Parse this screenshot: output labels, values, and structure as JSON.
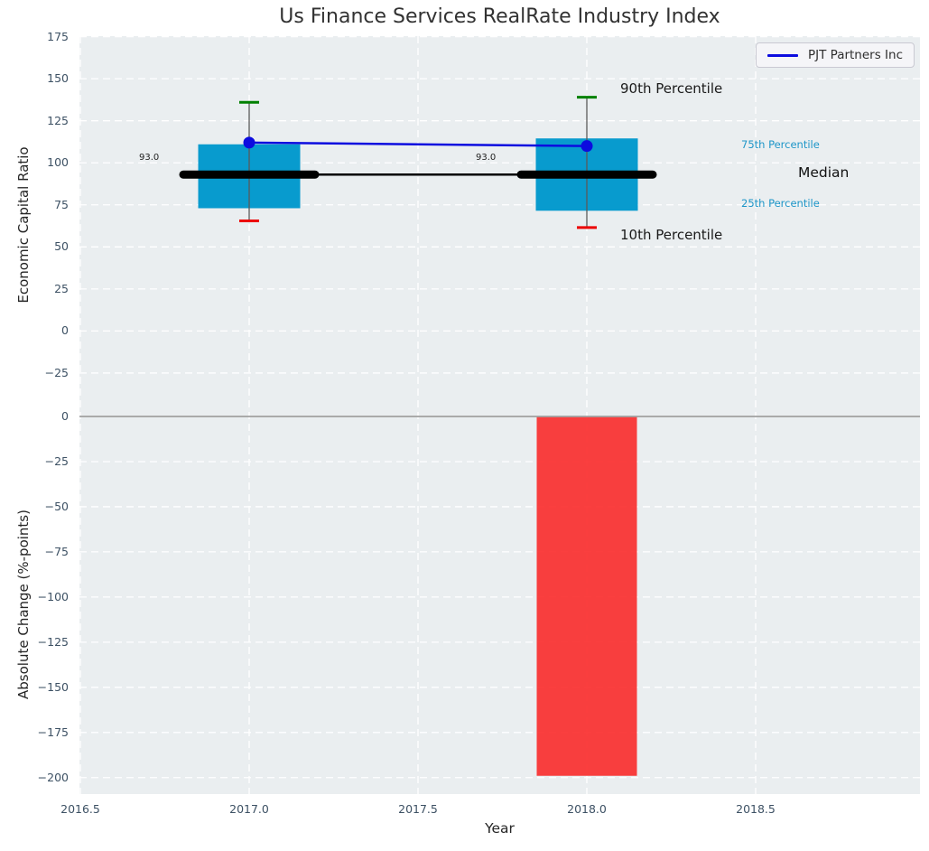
{
  "figure": {
    "title": "Us Finance Services RealRate Industry Index",
    "xlabel": "Year",
    "legend": {
      "label": "PJT Partners Inc"
    }
  },
  "annotations": {
    "p90_label": "90th Percentile",
    "p75_label": "75th Percentile",
    "median_label": "Median",
    "p25_label": "25th Percentile",
    "p10_label": "10th Percentile",
    "median_value_2017": "93.0",
    "median_value_2018": "93.0"
  },
  "colors": {
    "axes_background": "#eaeef0",
    "grid": "#ffffff",
    "box_fill": "#089bce",
    "bar_negative": "#fa2a2a",
    "p90_cap": "#008000",
    "p10_cap": "#ec0000",
    "whisker": "#5a5a5a",
    "median_line": "#000000",
    "pjt_line": "#0c0cdf",
    "zero_line": "#a0a0a0",
    "tick_text": "#3d5164",
    "percentile_text": "#1e96c8"
  },
  "chart_data": [
    {
      "type": "box",
      "title": "Us Finance Services RealRate Industry Index",
      "ylabel": "Economic Capital Ratio",
      "xlabel": "Year",
      "x": [
        2017,
        2018
      ],
      "series": [
        {
          "name": "90th Percentile",
          "values": [
            136,
            139
          ]
        },
        {
          "name": "75th Percentile",
          "values": [
            111,
            114.5
          ]
        },
        {
          "name": "Median",
          "values": [
            93.0,
            93.0
          ]
        },
        {
          "name": "25th Percentile",
          "values": [
            73,
            71.5
          ]
        },
        {
          "name": "10th Percentile",
          "values": [
            65.5,
            61.5
          ]
        },
        {
          "name": "PJT Partners Inc",
          "values": [
            112,
            110
          ]
        }
      ],
      "median_labels": [
        "93.0",
        "93.0"
      ],
      "ylim": [
        -50,
        175
      ],
      "xlim": [
        2016.5,
        2019.0
      ],
      "yticks": [
        175,
        150,
        125,
        100,
        75,
        50,
        25,
        0,
        -25
      ],
      "xticks": [
        2016.5,
        2017.0,
        2017.5,
        2018.0,
        2018.5
      ],
      "grid": true,
      "legend_position": "upper right"
    },
    {
      "type": "bar",
      "ylabel": "Absolute Change (%-points)",
      "xlabel": "Year",
      "x": [
        2018
      ],
      "values": [
        -199
      ],
      "ylim": [
        -209,
        1
      ],
      "xlim": [
        2016.5,
        2019.0
      ],
      "yticks": [
        0,
        -25,
        -50,
        -75,
        -100,
        -125,
        -150,
        -175,
        -200
      ],
      "xticks": [
        2016.5,
        2017.0,
        2017.5,
        2018.0,
        2018.5
      ],
      "grid": true
    }
  ]
}
